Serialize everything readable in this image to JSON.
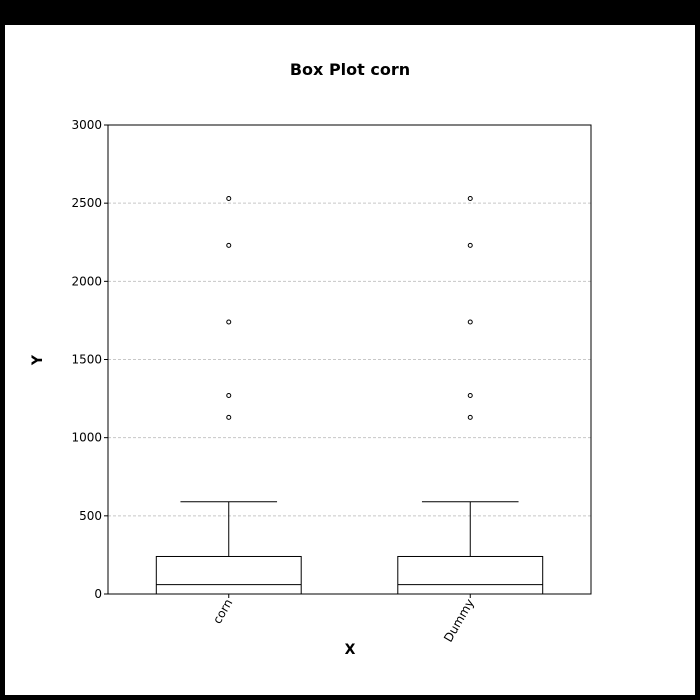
{
  "chart_data": {
    "type": "box",
    "title": "Box Plot corn",
    "xlabel": "X",
    "ylabel": "Y",
    "ylim": [
      0,
      3000
    ],
    "yticks": [
      0,
      500,
      1000,
      1500,
      2000,
      2500,
      3000
    ],
    "grid": true,
    "categories": [
      "corn",
      "Dummy"
    ],
    "series": [
      {
        "category": "corn",
        "min": 0,
        "q1": 0,
        "median": 60,
        "q3": 240,
        "whisker_high": 590,
        "outliers": [
          1130,
          1270,
          1740,
          2230,
          2530
        ]
      },
      {
        "category": "Dummy",
        "min": 0,
        "q1": 0,
        "median": 60,
        "q3": 240,
        "whisker_high": 590,
        "outliers": [
          1130,
          1270,
          1740,
          2230,
          2530
        ]
      }
    ]
  }
}
